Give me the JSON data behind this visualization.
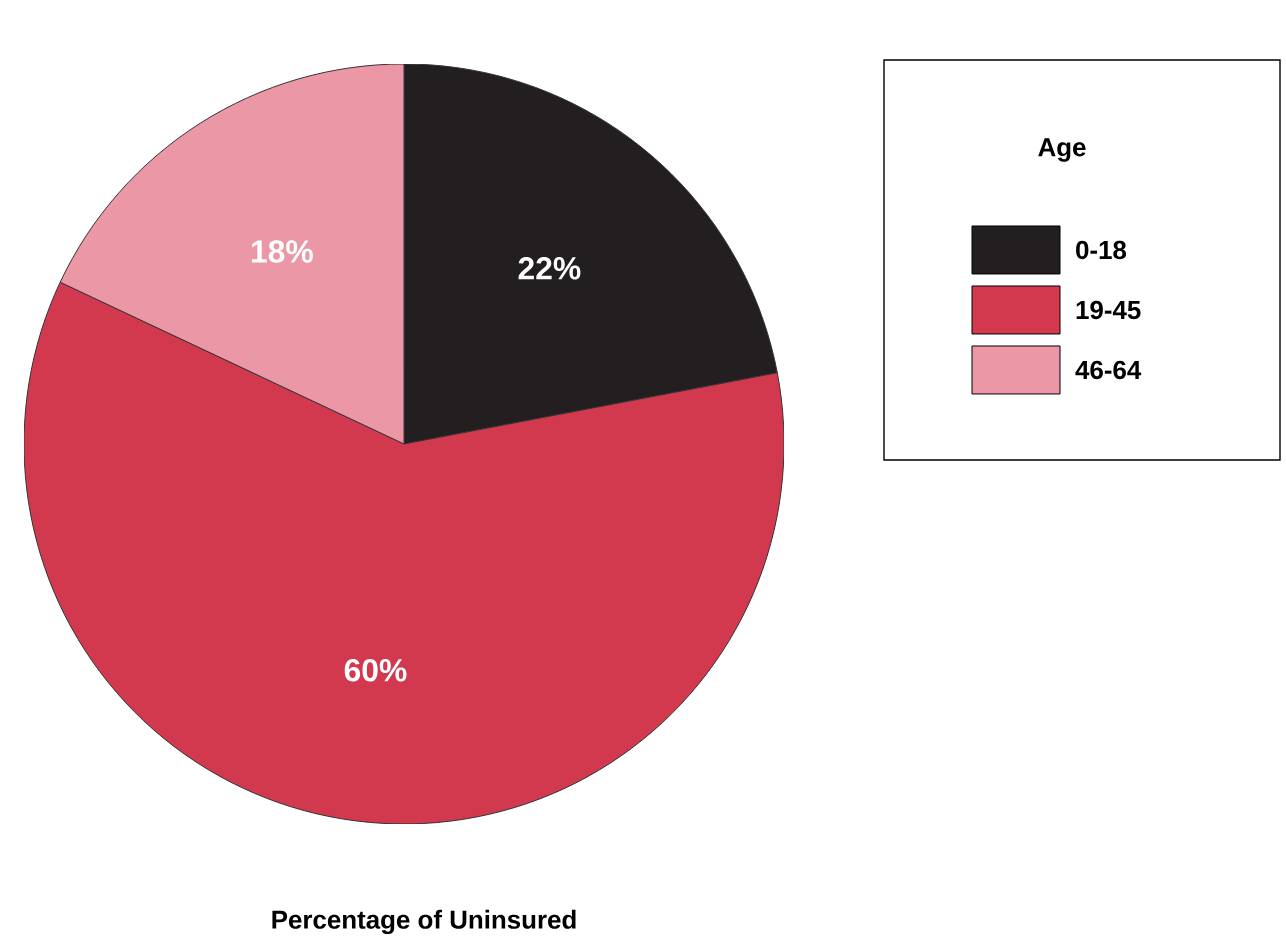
{
  "chart_data": {
    "type": "pie",
    "title": "Percentage of Uninsured",
    "legend_title": "Age",
    "categories": [
      "0-18",
      "19-45",
      "46-64"
    ],
    "values": [
      22,
      60,
      18
    ],
    "value_labels": [
      "22%",
      "60%",
      "18%"
    ],
    "colors": [
      "#231f20",
      "#d2394f",
      "#eb97a6"
    ],
    "legend": "right"
  }
}
